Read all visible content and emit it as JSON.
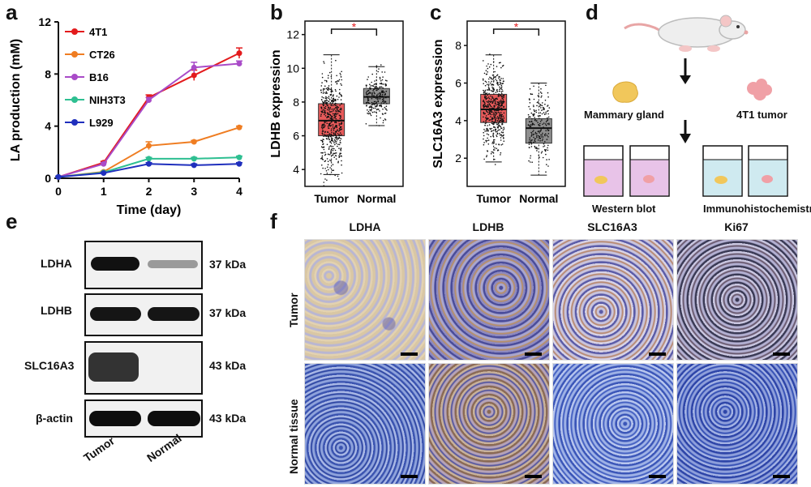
{
  "panels": {
    "a": "a",
    "b": "b",
    "c": "c",
    "d": "d",
    "e": "e",
    "f": "f"
  },
  "chart_data": [
    {
      "type": "line",
      "panel": "a",
      "xlabel": "Time (day)",
      "ylabel": "LA production (mM)",
      "x": [
        0,
        1,
        2,
        3,
        4
      ],
      "xticks": [
        "0",
        "1",
        "2",
        "3",
        "4"
      ],
      "yticks": [
        "0",
        "4",
        "8",
        "12"
      ],
      "ylim": [
        0,
        12
      ],
      "xlim": [
        0,
        4
      ],
      "legend_position": "top-left",
      "series": [
        {
          "name": "4T1",
          "color": "#e31a1c",
          "values": [
            0.1,
            1.2,
            6.2,
            7.9,
            9.6
          ],
          "err": [
            0.05,
            0.1,
            0.2,
            0.4,
            0.4
          ]
        },
        {
          "name": "CT26",
          "color": "#ef7d22",
          "values": [
            0.1,
            0.5,
            2.5,
            2.8,
            3.9
          ],
          "err": [
            0.05,
            0.05,
            0.3,
            0.1,
            0.1
          ]
        },
        {
          "name": "B16",
          "color": "#a94bc8",
          "values": [
            0.1,
            1.1,
            6.0,
            8.5,
            8.8
          ],
          "err": [
            0.05,
            0.1,
            0.2,
            0.4,
            0.2
          ]
        },
        {
          "name": "NIH3T3",
          "color": "#2ebf91",
          "values": [
            0.1,
            0.45,
            1.5,
            1.5,
            1.6
          ],
          "err": [
            0.05,
            0.05,
            0.1,
            0.1,
            0.1
          ]
        },
        {
          "name": "L929",
          "color": "#1f2fbd",
          "values": [
            0.1,
            0.4,
            1.1,
            1.0,
            1.1
          ],
          "err": [
            0.05,
            0.05,
            0.1,
            0.1,
            0.1
          ]
        }
      ]
    },
    {
      "type": "box",
      "panel": "b",
      "ylabel": "LDHB expression",
      "categories": [
        "Tumor",
        "Normal"
      ],
      "yticks": [
        "4",
        "6",
        "8",
        "10",
        "12"
      ],
      "ylim": [
        3,
        12.8
      ],
      "significance": "*",
      "boxes": [
        {
          "name": "Tumor",
          "color": "#e85a5a",
          "whisker_low": 3.7,
          "q1": 6.0,
          "median": 6.9,
          "q3": 7.9,
          "whisker_high": 10.8,
          "point_min": 2.5,
          "point_max": 11.9
        },
        {
          "name": "Normal",
          "color": "#8f8f8f",
          "whisker_low": 6.6,
          "q1": 7.9,
          "median": 8.3,
          "q3": 8.8,
          "whisker_high": 10.1,
          "point_min": 6.6,
          "point_max": 10.2
        }
      ]
    },
    {
      "type": "box",
      "panel": "c",
      "ylabel": "SLC16A3 expression",
      "categories": [
        "Tumor",
        "Normal"
      ],
      "yticks": [
        "2",
        "4",
        "6",
        "8"
      ],
      "ylim": [
        0.5,
        9.3
      ],
      "significance": "*",
      "boxes": [
        {
          "name": "Tumor",
          "color": "#e85a5a",
          "whisker_low": 1.8,
          "q1": 3.9,
          "median": 4.6,
          "q3": 5.4,
          "whisker_high": 7.5,
          "point_min": 0.4,
          "point_max": 8.6
        },
        {
          "name": "Normal",
          "color": "#8f8f8f",
          "whisker_low": 1.1,
          "q1": 2.8,
          "median": 3.6,
          "q3": 4.1,
          "whisker_high": 6.0,
          "point_min": 1.0,
          "point_max": 7.1
        }
      ]
    }
  ],
  "schematic": {
    "mammary": "Mammary gland",
    "tumor": "4T1 tumor",
    "western": "Western blot",
    "ihc": "Immunohistochemistry"
  },
  "western": {
    "rows": [
      {
        "protein": "LDHA",
        "kda": "37 kDa",
        "tumor": 0.95,
        "normal": 0.25
      },
      {
        "protein": "LDHB",
        "kda": "37 kDa",
        "tumor": 0.9,
        "normal": 0.9
      },
      {
        "protein": "SLC16A3",
        "kda": "43 kDa",
        "tumor": 0.85,
        "normal": 0.0
      },
      {
        "protein": "β-actin",
        "kda": "43 kDa",
        "tumor": 0.95,
        "normal": 0.95
      }
    ],
    "lanes": [
      "Tumor",
      "Normal"
    ]
  },
  "ihc": {
    "columns": [
      "LDHA",
      "LDHB",
      "SLC16A3",
      "Ki67"
    ],
    "rows": [
      "Tumor",
      "Normal tissue"
    ]
  }
}
